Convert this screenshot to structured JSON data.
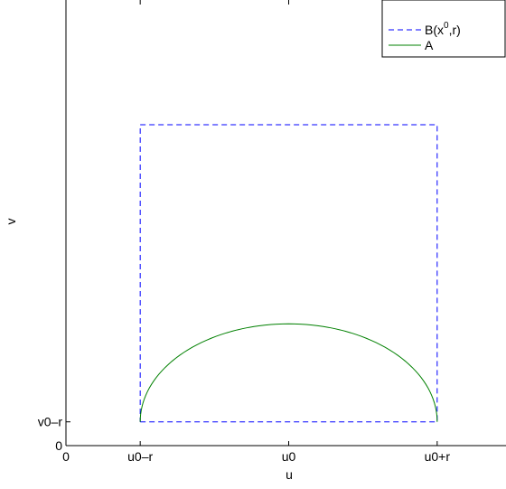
{
  "chart_data": {
    "type": "line",
    "title": "",
    "xlabel": "u",
    "ylabel": "v",
    "xlim": [
      0,
      3
    ],
    "ylim": [
      0,
      3
    ],
    "grid": false,
    "legend_position": "top-right",
    "x_ticks": [
      {
        "value": 0,
        "label": "0"
      },
      {
        "value": 0.5,
        "label": "u0–r"
      },
      {
        "value": 1.5,
        "label": "u0"
      },
      {
        "value": 2.5,
        "label": "u0+r"
      }
    ],
    "y_ticks": [
      {
        "value": 0,
        "label": "0"
      },
      {
        "value": 0.16,
        "label": "v0–r"
      }
    ],
    "series": [
      {
        "name": "B(x0,r)",
        "legend_base": "B(x",
        "legend_sup": "0",
        "legend_tail": ",r)",
        "color": "#0000ff",
        "style": "dashed",
        "x": [
          0.5,
          2.5,
          2.5,
          0.5,
          0.5
        ],
        "y": [
          0.16,
          0.16,
          2.16,
          2.16,
          0.16
        ]
      },
      {
        "name": "A",
        "legend_label": "A",
        "color": "#008000",
        "style": "solid",
        "center": [
          1.5,
          0.16
        ],
        "radius": 1.0,
        "height": 0.66
      }
    ]
  }
}
